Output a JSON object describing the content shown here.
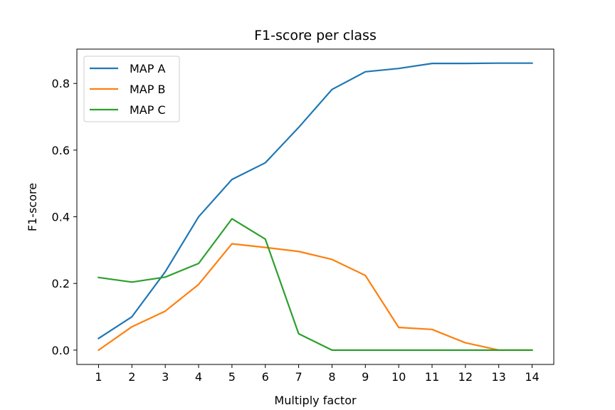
{
  "chart_data": {
    "type": "line",
    "title": "F1-score per class",
    "xlabel": "Multiply factor",
    "ylabel": "F1-score",
    "x": [
      1,
      2,
      3,
      4,
      5,
      6,
      7,
      8,
      9,
      10,
      11,
      12,
      13,
      14
    ],
    "xlim": [
      0.35,
      14.65
    ],
    "ylim": [
      -0.043,
      0.903
    ],
    "yticks": [
      0.0,
      0.2,
      0.4,
      0.6,
      0.8
    ],
    "ytick_labels": [
      "0.0",
      "0.2",
      "0.4",
      "0.6",
      "0.8"
    ],
    "xtick_labels": [
      "1",
      "2",
      "3",
      "4",
      "5",
      "6",
      "7",
      "8",
      "9",
      "10",
      "11",
      "12",
      "13",
      "14"
    ],
    "grid": false,
    "legend_position": "top-left",
    "series": [
      {
        "name": "MAP A",
        "color": "#1f77b4",
        "values": [
          0.035,
          0.1,
          0.235,
          0.4,
          0.512,
          0.562,
          0.668,
          0.782,
          0.835,
          0.845,
          0.86,
          0.86,
          0.861,
          0.861
        ]
      },
      {
        "name": "MAP B",
        "color": "#ff7f0e",
        "values": [
          0.0,
          0.07,
          0.117,
          0.197,
          0.319,
          0.308,
          0.296,
          0.272,
          0.224,
          0.068,
          0.062,
          0.022,
          0.0,
          0.0
        ]
      },
      {
        "name": "MAP C",
        "color": "#2ca02c",
        "values": [
          0.218,
          0.204,
          0.219,
          0.26,
          0.394,
          0.333,
          0.049,
          0.0,
          0.0,
          0.0,
          0.0,
          0.0,
          0.0,
          0.0
        ]
      }
    ]
  }
}
